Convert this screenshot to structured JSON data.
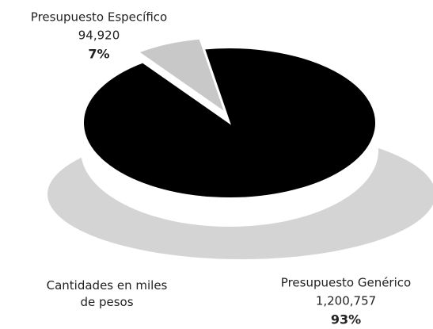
{
  "chart_data": {
    "type": "pie",
    "categories": [
      "Presupuesto Específico",
      "Presupuesto Genérico"
    ],
    "values": [
      94920,
      1200757
    ],
    "value_labels": [
      "94,920",
      "1,200,757"
    ],
    "percentages": [
      7,
      93
    ],
    "percent_labels": [
      "7%",
      "93%"
    ],
    "colors": [
      "#c8c8c8",
      "#000000"
    ],
    "note": "Cantidades en miles de pesos"
  }
}
